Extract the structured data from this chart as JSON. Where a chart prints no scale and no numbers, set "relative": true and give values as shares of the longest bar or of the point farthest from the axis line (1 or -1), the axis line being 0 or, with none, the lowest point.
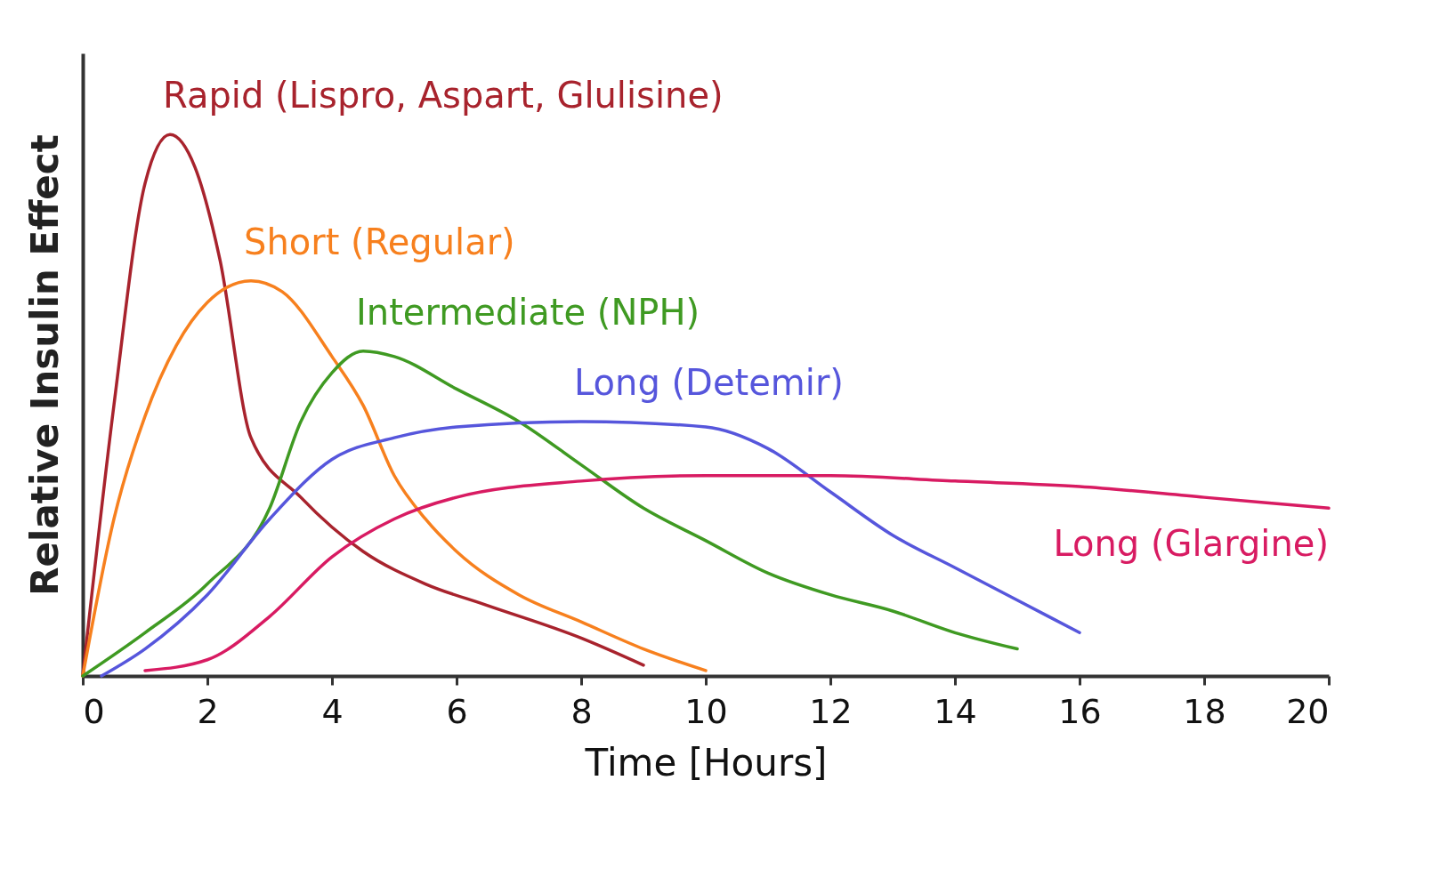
{
  "chart_data": {
    "type": "line",
    "relative": true,
    "xlabel": "Time [Hours]",
    "ylabel": "Relative Insulin Effect",
    "xlim": [
      0,
      20
    ],
    "xticks": [
      0,
      2,
      4,
      6,
      8,
      10,
      12,
      14,
      16,
      18,
      20
    ],
    "grid": false,
    "legend": false,
    "marker": "none",
    "line_style": "solid",
    "series": [
      {
        "name": "Rapid (Lispro, Aspart, Glulisine)",
        "color": "#a8232d",
        "x": [
          0,
          0.5,
          1,
          1.4,
          1.8,
          2.2,
          2.7,
          3.5,
          4.5,
          5.5,
          6.5,
          8,
          9
        ],
        "values": [
          0,
          0.5,
          0.91,
          1,
          0.94,
          0.77,
          0.44,
          0.33,
          0.23,
          0.17,
          0.13,
          0.07,
          0.02
        ]
      },
      {
        "name": "Short (Regular)",
        "color": "#f7801e",
        "x": [
          0,
          0.5,
          1,
          1.5,
          2,
          2.7,
          3.2,
          4,
          4.5,
          5,
          5.5,
          6,
          7,
          8,
          9,
          10
        ],
        "values": [
          0,
          0.29,
          0.48,
          0.61,
          0.69,
          0.73,
          0.71,
          0.59,
          0.5,
          0.37,
          0.29,
          0.23,
          0.15,
          0.1,
          0.05,
          0.01
        ]
      },
      {
        "name": "Intermediate (NPH)",
        "color": "#3f9a22",
        "x": [
          0,
          1,
          2,
          3,
          3.5,
          4,
          4.5,
          5,
          6,
          7,
          8,
          9,
          10,
          11,
          12,
          13,
          14,
          15
        ],
        "values": [
          0,
          0.08,
          0.17,
          0.31,
          0.47,
          0.56,
          0.6,
          0.59,
          0.53,
          0.47,
          0.39,
          0.31,
          0.25,
          0.19,
          0.15,
          0.12,
          0.08,
          0.05
        ]
      },
      {
        "name": "Long (Detemir)",
        "color": "#5656dc",
        "x": [
          0.3,
          1,
          2,
          3,
          4,
          5,
          6,
          8,
          10,
          11,
          12,
          13,
          14,
          15,
          16
        ],
        "values": [
          0,
          0.05,
          0.15,
          0.29,
          0.4,
          0.44,
          0.46,
          0.47,
          0.46,
          0.42,
          0.34,
          0.26,
          0.2,
          0.14,
          0.08
        ]
      },
      {
        "name": "Long (Glargine)",
        "color": "#d81b62",
        "x": [
          1,
          2,
          3,
          4,
          5,
          6,
          8,
          10,
          12,
          14,
          16,
          18,
          20
        ],
        "values": [
          0.01,
          0.03,
          0.11,
          0.22,
          0.29,
          0.33,
          0.36,
          0.37,
          0.37,
          0.36,
          0.35,
          0.33,
          0.31
        ]
      }
    ]
  }
}
